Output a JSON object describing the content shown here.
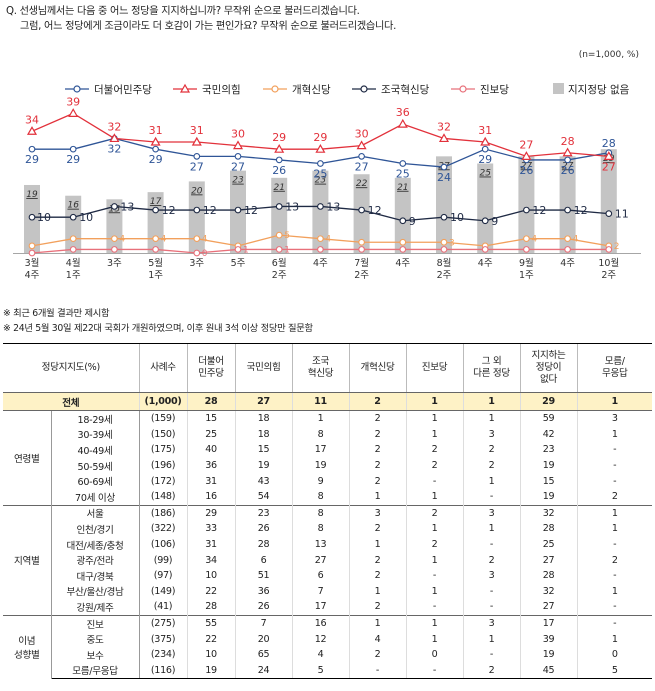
{
  "question": {
    "line1": "Q. 선생님께서는 다음 중 어느 정당을 지지하십니까? 무작위 순으로 불러드리겠습니다.",
    "line2": "그럼, 어느 정당에게 조금이라도 더 호감이 가는 편인가요? 무작위 순으로 불러드리겠습니다."
  },
  "sample_note": "(n=1,000, %)",
  "chart_data": {
    "type": "line",
    "categories": [
      "3월 4주",
      "4월 1주",
      "3주",
      "5월 1주",
      "3주",
      "5주",
      "6월 2주",
      "4주",
      "7월 2주",
      "4주",
      "8월 2주",
      "4주",
      "9월 1주",
      "4주",
      "10월 2주"
    ],
    "x_labels": [
      [
        "3월",
        "4주"
      ],
      [
        "4월",
        "1주"
      ],
      [
        "3주",
        ""
      ],
      [
        "5월",
        "1주"
      ],
      [
        "3주",
        ""
      ],
      [
        "5주",
        ""
      ],
      [
        "6월",
        "2주"
      ],
      [
        "4주",
        ""
      ],
      [
        "7월",
        "2주"
      ],
      [
        "4주",
        ""
      ],
      [
        "8월",
        "2주"
      ],
      [
        "4주",
        ""
      ],
      [
        "9월",
        "1주"
      ],
      [
        "4주",
        ""
      ],
      [
        "10월",
        "2주"
      ]
    ],
    "series": [
      {
        "name": "더불어민주당",
        "color": "#2f5597",
        "marker": "circle",
        "values": [
          29,
          29,
          32,
          29,
          27,
          27,
          26,
          25,
          27,
          25,
          24,
          29,
          26,
          26,
          28
        ],
        "labels": [
          "29",
          "29",
          "32",
          "29",
          "27",
          "27",
          "26",
          "25",
          "27",
          "25",
          "24",
          "29",
          "26",
          "26",
          "28"
        ]
      },
      {
        "name": "국민의힘",
        "color": "#e2313b",
        "marker": "triangle",
        "values": [
          34,
          39,
          32,
          31,
          31,
          30,
          29,
          29,
          30,
          36,
          32,
          31,
          27,
          28,
          27
        ],
        "labels": [
          "34",
          "39",
          "32",
          "31",
          "31",
          "30",
          "29",
          "29",
          "30",
          "36",
          "32",
          "31",
          "27",
          "28",
          "27"
        ]
      },
      {
        "name": "개혁신당",
        "color": "#f2a05c",
        "marker": "circle",
        "values": [
          2,
          4,
          4,
          4,
          4,
          2,
          5,
          4,
          3,
          3,
          3,
          2,
          4,
          4,
          2
        ],
        "labels": [
          "",
          "",
          "4",
          "4",
          "4",
          "",
          "5",
          "4",
          "",
          "",
          "3",
          "",
          "4",
          "4",
          "2"
        ]
      },
      {
        "name": "조국혁신당",
        "color": "#1f2a44",
        "marker": "circle",
        "values": [
          10,
          10,
          13,
          12,
          12,
          12,
          13,
          13,
          12,
          9,
          10,
          9,
          12,
          12,
          11
        ],
        "labels": [
          "10",
          "10",
          "13",
          "12",
          "12",
          "12",
          "13",
          "13",
          "12",
          "9",
          "10",
          "9",
          "12",
          "12",
          "11"
        ]
      },
      {
        "name": "진보당",
        "color": "#e8707a",
        "marker": "circle",
        "values": [
          0,
          1,
          1,
          1,
          0,
          1,
          1,
          1,
          1,
          1,
          1,
          1,
          1,
          1,
          1
        ],
        "labels": [
          "",
          "",
          "",
          "",
          "0",
          "1",
          "1",
          "",
          "",
          "",
          "",
          "",
          "",
          "",
          ""
        ]
      }
    ],
    "bars": {
      "name": "지지정당 없음",
      "color": "#c4c4c4",
      "values": [
        19,
        16,
        15,
        17,
        20,
        23,
        21,
        23,
        22,
        21,
        27,
        25,
        27,
        27,
        29
      ],
      "labels": [
        "19",
        "16",
        "15",
        "17",
        "20",
        "23",
        "21",
        "23",
        "22",
        "21",
        "27",
        "25",
        "27",
        "27",
        "29"
      ]
    },
    "ylim": [
      0,
      45
    ]
  },
  "notes": [
    "※ 최근 6개월 결과만 제시함",
    "※ 24년 5월 30일 제22대 국회가 개원하였으며, 이후 원내 3석 이상 정당만 질문함"
  ],
  "table": {
    "headers": [
      [
        "정당지지도(%)"
      ],
      [
        "사례수"
      ],
      [
        "더불어",
        "민주당"
      ],
      [
        "국민의힘"
      ],
      [
        "조국",
        "혁신당"
      ],
      [
        "개혁신당"
      ],
      [
        "진보당"
      ],
      [
        "그 외",
        "다른 정당"
      ],
      [
        "지지하는",
        "정당이",
        "없다"
      ],
      [
        "모름/",
        "무응답"
      ]
    ],
    "total": {
      "label": "전체",
      "n": "(1,000)",
      "values": [
        "28",
        "27",
        "11",
        "2",
        "1",
        "1",
        "29",
        "1"
      ]
    },
    "groups": [
      {
        "name": [
          "연령별"
        ],
        "rows": [
          {
            "label": "18-29세",
            "n": "(159)",
            "values": [
              "15",
              "18",
              "1",
              "2",
              "1",
              "1",
              "59",
              "3"
            ]
          },
          {
            "label": "30-39세",
            "n": "(150)",
            "values": [
              "25",
              "18",
              "8",
              "2",
              "1",
              "3",
              "42",
              "1"
            ]
          },
          {
            "label": "40-49세",
            "n": "(175)",
            "values": [
              "40",
              "15",
              "17",
              "2",
              "2",
              "2",
              "23",
              "-"
            ]
          },
          {
            "label": "50-59세",
            "n": "(196)",
            "values": [
              "36",
              "19",
              "19",
              "2",
              "2",
              "2",
              "19",
              "-"
            ]
          },
          {
            "label": "60-69세",
            "n": "(172)",
            "values": [
              "31",
              "43",
              "9",
              "2",
              "-",
              "1",
              "15",
              "-"
            ]
          },
          {
            "label": "70세 이상",
            "n": "(148)",
            "values": [
              "16",
              "54",
              "8",
              "1",
              "1",
              "-",
              "19",
              "2"
            ]
          }
        ]
      },
      {
        "name": [
          "지역별"
        ],
        "rows": [
          {
            "label": "서울",
            "n": "(186)",
            "values": [
              "29",
              "23",
              "8",
              "3",
              "2",
              "3",
              "32",
              "1"
            ]
          },
          {
            "label": "인천/경기",
            "n": "(322)",
            "values": [
              "33",
              "26",
              "8",
              "2",
              "1",
              "1",
              "28",
              "1"
            ]
          },
          {
            "label": "대전/세종/충청",
            "n": "(106)",
            "values": [
              "31",
              "28",
              "13",
              "1",
              "2",
              "-",
              "25",
              "-"
            ]
          },
          {
            "label": "광주/전라",
            "n": "(99)",
            "values": [
              "34",
              "6",
              "27",
              "2",
              "1",
              "2",
              "27",
              "2"
            ]
          },
          {
            "label": "대구/경북",
            "n": "(97)",
            "values": [
              "10",
              "51",
              "6",
              "2",
              "-",
              "3",
              "28",
              "-"
            ]
          },
          {
            "label": "부산/울산/경남",
            "n": "(149)",
            "values": [
              "22",
              "36",
              "7",
              "1",
              "1",
              "-",
              "32",
              "1"
            ]
          },
          {
            "label": "강원/제주",
            "n": "(41)",
            "values": [
              "28",
              "26",
              "17",
              "2",
              "-",
              "-",
              "27",
              "-"
            ]
          }
        ]
      },
      {
        "name": [
          "이념",
          "성향별"
        ],
        "rows": [
          {
            "label": "진보",
            "n": "(275)",
            "values": [
              "55",
              "7",
              "16",
              "1",
              "1",
              "3",
              "17",
              "-"
            ]
          },
          {
            "label": "중도",
            "n": "(375)",
            "values": [
              "22",
              "20",
              "12",
              "4",
              "1",
              "1",
              "39",
              "1"
            ]
          },
          {
            "label": "보수",
            "n": "(234)",
            "values": [
              "10",
              "65",
              "4",
              "2",
              "0",
              "-",
              "19",
              "0"
            ]
          },
          {
            "label": "모름/무응답",
            "n": "(116)",
            "values": [
              "19",
              "24",
              "5",
              "-",
              "-",
              "2",
              "45",
              "5"
            ]
          }
        ]
      }
    ]
  }
}
